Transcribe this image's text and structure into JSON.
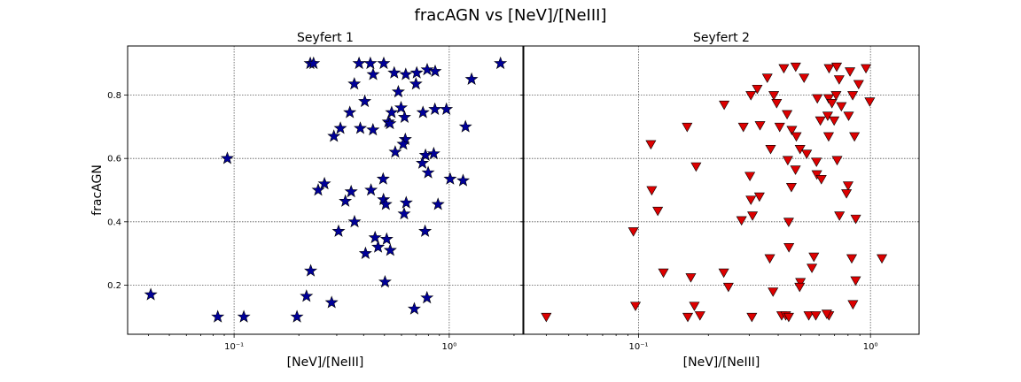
{
  "title": "fracAGN vs [NeV]/[NeIII]",
  "chart_data": [
    {
      "type": "scatter",
      "title": "Seyfert 1",
      "xlabel": "[NeV]/[NeIII]",
      "ylabel": "fracAGN",
      "xscale": "log",
      "xlim": [
        0.032,
        2.2
      ],
      "ylim": [
        0.045,
        0.955
      ],
      "xtick_labels": [
        "10⁻¹",
        "10⁰"
      ],
      "xticks": [
        0.1,
        1
      ],
      "ytick_labels": [
        "0.2",
        "0.4",
        "0.6",
        "0.8"
      ],
      "yticks": [
        0.2,
        0.4,
        0.6,
        0.8
      ],
      "grid": true,
      "marker": "star",
      "marker_color": "#000099",
      "points": [
        {
          "x": 0.226,
          "y": 0.9
        },
        {
          "x": 0.234,
          "y": 0.9
        },
        {
          "x": 0.381,
          "y": 0.9
        },
        {
          "x": 0.43,
          "y": 0.9
        },
        {
          "x": 0.496,
          "y": 0.9
        },
        {
          "x": 1.73,
          "y": 0.9
        },
        {
          "x": 0.443,
          "y": 0.865
        },
        {
          "x": 0.555,
          "y": 0.87
        },
        {
          "x": 0.628,
          "y": 0.865
        },
        {
          "x": 0.706,
          "y": 0.87
        },
        {
          "x": 0.79,
          "y": 0.88
        },
        {
          "x": 0.86,
          "y": 0.875
        },
        {
          "x": 1.27,
          "y": 0.85
        },
        {
          "x": 0.7,
          "y": 0.835
        },
        {
          "x": 0.362,
          "y": 0.835
        },
        {
          "x": 0.58,
          "y": 0.81
        },
        {
          "x": 0.405,
          "y": 0.78
        },
        {
          "x": 0.597,
          "y": 0.76
        },
        {
          "x": 0.858,
          "y": 0.755
        },
        {
          "x": 0.97,
          "y": 0.755
        },
        {
          "x": 0.755,
          "y": 0.745
        },
        {
          "x": 0.54,
          "y": 0.745
        },
        {
          "x": 0.345,
          "y": 0.745
        },
        {
          "x": 0.62,
          "y": 0.73
        },
        {
          "x": 0.521,
          "y": 0.715
        },
        {
          "x": 0.53,
          "y": 0.71
        },
        {
          "x": 1.19,
          "y": 0.7
        },
        {
          "x": 0.312,
          "y": 0.695
        },
        {
          "x": 0.386,
          "y": 0.695
        },
        {
          "x": 0.442,
          "y": 0.69
        },
        {
          "x": 0.291,
          "y": 0.67
        },
        {
          "x": 0.625,
          "y": 0.66
        },
        {
          "x": 0.611,
          "y": 0.645
        },
        {
          "x": 0.561,
          "y": 0.62
        },
        {
          "x": 0.847,
          "y": 0.615
        },
        {
          "x": 0.776,
          "y": 0.61
        },
        {
          "x": 0.093,
          "y": 0.6
        },
        {
          "x": 0.75,
          "y": 0.585
        },
        {
          "x": 0.798,
          "y": 0.555
        },
        {
          "x": 1.01,
          "y": 0.535
        },
        {
          "x": 1.16,
          "y": 0.53
        },
        {
          "x": 0.493,
          "y": 0.535
        },
        {
          "x": 0.263,
          "y": 0.52
        },
        {
          "x": 0.246,
          "y": 0.5
        },
        {
          "x": 0.433,
          "y": 0.5
        },
        {
          "x": 0.35,
          "y": 0.495
        },
        {
          "x": 0.329,
          "y": 0.465
        },
        {
          "x": 0.495,
          "y": 0.47
        },
        {
          "x": 0.631,
          "y": 0.46
        },
        {
          "x": 0.507,
          "y": 0.455
        },
        {
          "x": 0.887,
          "y": 0.455
        },
        {
          "x": 0.617,
          "y": 0.425
        },
        {
          "x": 0.363,
          "y": 0.4
        },
        {
          "x": 0.306,
          "y": 0.37
        },
        {
          "x": 0.772,
          "y": 0.37
        },
        {
          "x": 0.452,
          "y": 0.35
        },
        {
          "x": 0.512,
          "y": 0.345
        },
        {
          "x": 0.467,
          "y": 0.32
        },
        {
          "x": 0.532,
          "y": 0.31
        },
        {
          "x": 0.408,
          "y": 0.3
        },
        {
          "x": 0.227,
          "y": 0.245
        },
        {
          "x": 0.503,
          "y": 0.21
        },
        {
          "x": 0.041,
          "y": 0.17
        },
        {
          "x": 0.217,
          "y": 0.165
        },
        {
          "x": 0.788,
          "y": 0.16
        },
        {
          "x": 0.284,
          "y": 0.145
        },
        {
          "x": 0.688,
          "y": 0.125
        },
        {
          "x": 0.084,
          "y": 0.1
        },
        {
          "x": 0.111,
          "y": 0.1
        },
        {
          "x": 0.196,
          "y": 0.1
        }
      ]
    },
    {
      "type": "scatter",
      "title": "Seyfert 2",
      "xlabel": "[NeV]/[NeIII]",
      "ylabel": "",
      "xscale": "log",
      "xlim": [
        0.032,
        1.62
      ],
      "ylim": [
        0.045,
        0.955
      ],
      "xtick_labels": [
        "10⁻¹",
        "10⁰"
      ],
      "xticks": [
        0.1,
        1
      ],
      "ytick_labels": [],
      "yticks": [
        0.2,
        0.4,
        0.6,
        0.8
      ],
      "grid": true,
      "marker": "triangle-down",
      "marker_color": "#dd0000",
      "points": [
        {
          "x": 0.423,
          "y": 0.885
        },
        {
          "x": 0.476,
          "y": 0.89
        },
        {
          "x": 0.663,
          "y": 0.885
        },
        {
          "x": 0.715,
          "y": 0.89
        },
        {
          "x": 0.816,
          "y": 0.875
        },
        {
          "x": 0.956,
          "y": 0.885
        },
        {
          "x": 0.517,
          "y": 0.855
        },
        {
          "x": 0.359,
          "y": 0.855
        },
        {
          "x": 0.733,
          "y": 0.85
        },
        {
          "x": 0.889,
          "y": 0.835
        },
        {
          "x": 0.325,
          "y": 0.82
        },
        {
          "x": 0.305,
          "y": 0.8
        },
        {
          "x": 0.383,
          "y": 0.8
        },
        {
          "x": 0.59,
          "y": 0.79
        },
        {
          "x": 0.66,
          "y": 0.79
        },
        {
          "x": 0.711,
          "y": 0.8
        },
        {
          "x": 0.838,
          "y": 0.8
        },
        {
          "x": 0.234,
          "y": 0.77
        },
        {
          "x": 0.394,
          "y": 0.775
        },
        {
          "x": 0.682,
          "y": 0.775
        },
        {
          "x": 0.749,
          "y": 0.765
        },
        {
          "x": 0.993,
          "y": 0.78
        },
        {
          "x": 0.437,
          "y": 0.74
        },
        {
          "x": 0.654,
          "y": 0.735
        },
        {
          "x": 0.697,
          "y": 0.72
        },
        {
          "x": 0.805,
          "y": 0.735
        },
        {
          "x": 0.608,
          "y": 0.72
        },
        {
          "x": 0.283,
          "y": 0.7
        },
        {
          "x": 0.162,
          "y": 0.7
        },
        {
          "x": 0.334,
          "y": 0.705
        },
        {
          "x": 0.406,
          "y": 0.7
        },
        {
          "x": 0.458,
          "y": 0.69
        },
        {
          "x": 0.479,
          "y": 0.67
        },
        {
          "x": 0.66,
          "y": 0.67
        },
        {
          "x": 0.853,
          "y": 0.67
        },
        {
          "x": 0.113,
          "y": 0.645
        },
        {
          "x": 0.371,
          "y": 0.63
        },
        {
          "x": 0.497,
          "y": 0.63
        },
        {
          "x": 0.531,
          "y": 0.615
        },
        {
          "x": 0.44,
          "y": 0.595
        },
        {
          "x": 0.585,
          "y": 0.59
        },
        {
          "x": 0.718,
          "y": 0.595
        },
        {
          "x": 0.475,
          "y": 0.565
        },
        {
          "x": 0.587,
          "y": 0.55
        },
        {
          "x": 0.177,
          "y": 0.575
        },
        {
          "x": 0.302,
          "y": 0.545
        },
        {
          "x": 0.614,
          "y": 0.535
        },
        {
          "x": 0.456,
          "y": 0.51
        },
        {
          "x": 0.801,
          "y": 0.515
        },
        {
          "x": 0.114,
          "y": 0.5
        },
        {
          "x": 0.788,
          "y": 0.49
        },
        {
          "x": 0.305,
          "y": 0.47
        },
        {
          "x": 0.332,
          "y": 0.48
        },
        {
          "x": 0.121,
          "y": 0.435
        },
        {
          "x": 0.31,
          "y": 0.42
        },
        {
          "x": 0.735,
          "y": 0.42
        },
        {
          "x": 0.864,
          "y": 0.41
        },
        {
          "x": 0.278,
          "y": 0.405
        },
        {
          "x": 0.444,
          "y": 0.4
        },
        {
          "x": 0.095,
          "y": 0.37
        },
        {
          "x": 0.445,
          "y": 0.32
        },
        {
          "x": 0.368,
          "y": 0.285
        },
        {
          "x": 0.57,
          "y": 0.29
        },
        {
          "x": 0.83,
          "y": 0.285
        },
        {
          "x": 1.12,
          "y": 0.285
        },
        {
          "x": 0.128,
          "y": 0.24
        },
        {
          "x": 0.233,
          "y": 0.24
        },
        {
          "x": 0.559,
          "y": 0.255
        },
        {
          "x": 0.499,
          "y": 0.21
        },
        {
          "x": 0.168,
          "y": 0.225
        },
        {
          "x": 0.244,
          "y": 0.195
        },
        {
          "x": 0.863,
          "y": 0.215
        },
        {
          "x": 0.495,
          "y": 0.195
        },
        {
          "x": 0.38,
          "y": 0.18
        },
        {
          "x": 0.097,
          "y": 0.135
        },
        {
          "x": 0.174,
          "y": 0.135
        },
        {
          "x": 0.84,
          "y": 0.14
        },
        {
          "x": 0.04,
          "y": 0.1
        },
        {
          "x": 0.163,
          "y": 0.1
        },
        {
          "x": 0.184,
          "y": 0.105
        },
        {
          "x": 0.308,
          "y": 0.1
        },
        {
          "x": 0.414,
          "y": 0.105
        },
        {
          "x": 0.431,
          "y": 0.105
        },
        {
          "x": 0.444,
          "y": 0.1
        },
        {
          "x": 0.542,
          "y": 0.105
        },
        {
          "x": 0.581,
          "y": 0.105
        },
        {
          "x": 0.662,
          "y": 0.105
        },
        {
          "x": 0.648,
          "y": 0.11
        }
      ]
    }
  ]
}
